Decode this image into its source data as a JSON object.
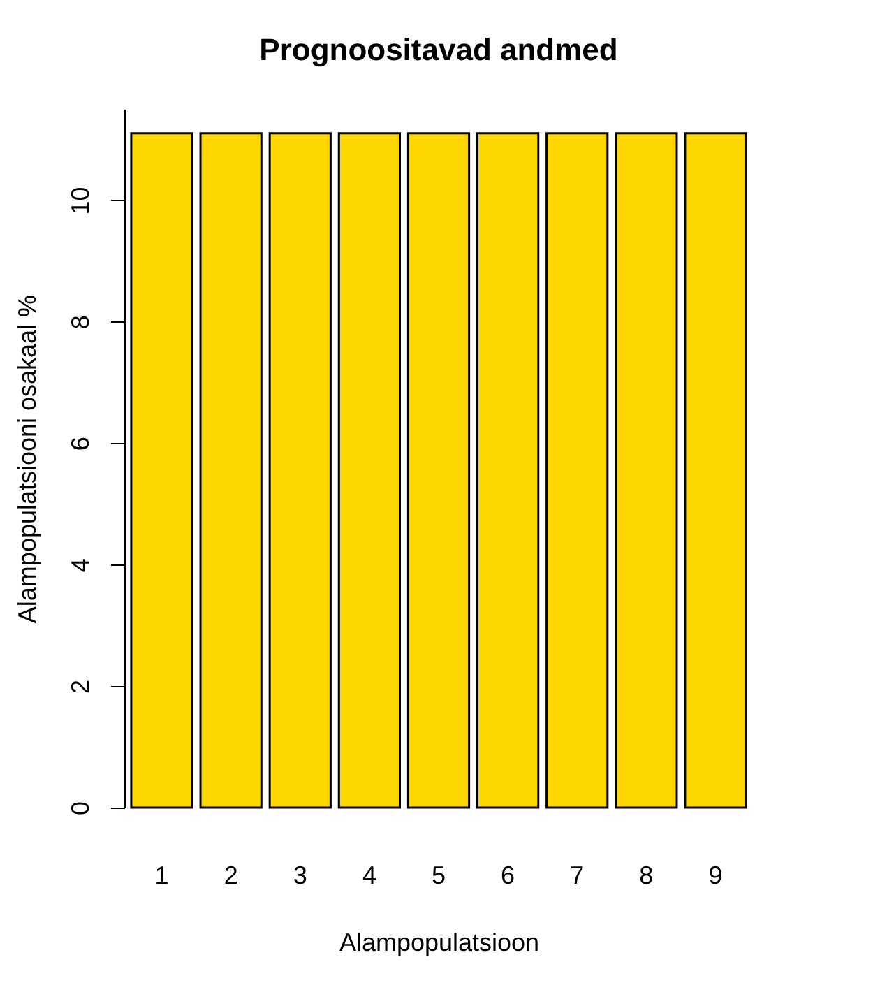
{
  "chart_data": {
    "type": "bar",
    "title": "Prognoositavad andmed",
    "xlabel": "Alampopulatsioon",
    "ylabel": "Alampopulatsiooni osakaal %",
    "categories": [
      "1",
      "2",
      "3",
      "4",
      "5",
      "6",
      "7",
      "8",
      "9"
    ],
    "values": [
      11.1,
      11.1,
      11.1,
      11.1,
      11.1,
      11.1,
      11.1,
      11.1,
      11.1
    ],
    "color": "#ffd700",
    "ylim": [
      0,
      11.5
    ],
    "yticks": [
      0,
      2,
      4,
      6,
      8,
      10
    ],
    "grid": false
  }
}
